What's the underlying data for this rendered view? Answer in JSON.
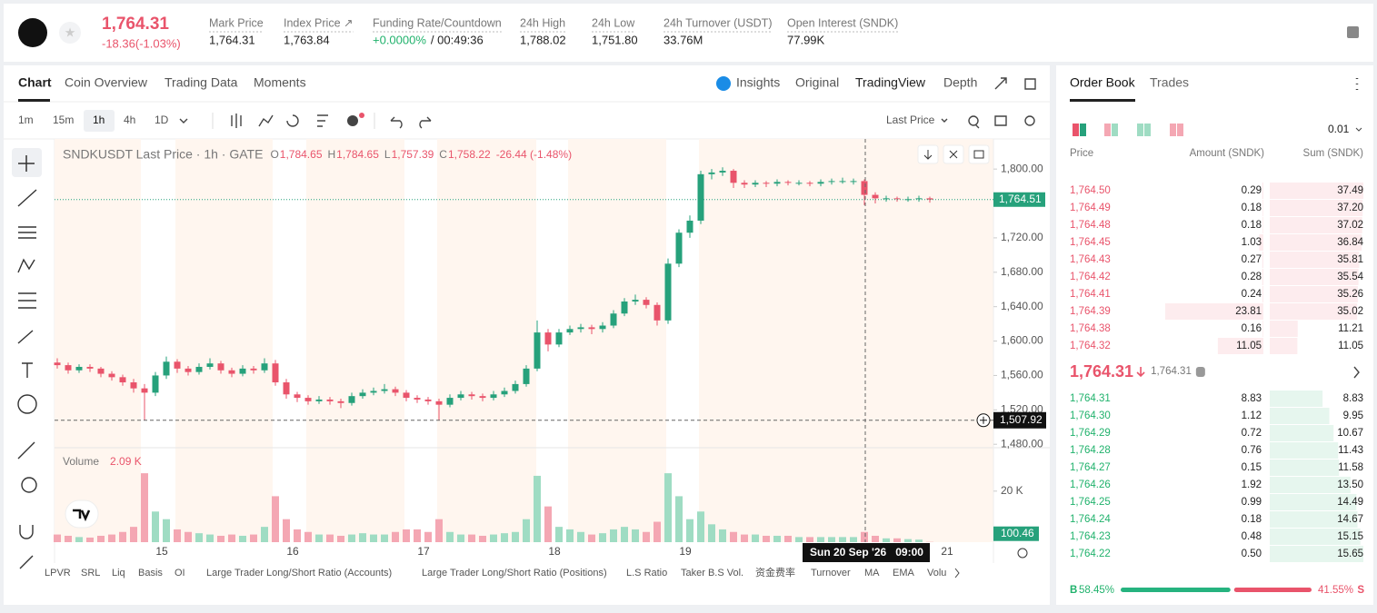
{
  "header": {
    "price": "1,764.31",
    "change": "-18.36(-1.03%)",
    "stats": [
      {
        "label": "Mark Price",
        "value": "1,764.31"
      },
      {
        "label": "Index Price ↗",
        "value": "1,763.84"
      },
      {
        "label": "Funding Rate/Countdown",
        "value": "+0.0000%",
        "countdown": "/ 00:49:36"
      },
      {
        "label": "24h High",
        "value": "1,788.02"
      },
      {
        "label": "24h Low",
        "value": "1,751.80"
      },
      {
        "label": "24h Turnover (USDT)",
        "value": "33.76M"
      },
      {
        "label": "Open Interest (SNDK)",
        "value": "77.99K"
      }
    ]
  },
  "nav": {
    "tabs": [
      "Chart",
      "Coin Overview",
      "Trading Data",
      "Moments"
    ],
    "views": [
      "Insights",
      "Original",
      "TradingView",
      "Depth"
    ]
  },
  "toolbar": {
    "intervals": [
      "1m",
      "15m",
      "1h",
      "4h",
      "1D"
    ],
    "price_type": "Last Price"
  },
  "indicators": [
    "LPVR",
    "SRL",
    "Liq",
    "Basis",
    "OI",
    "Large Trader Long/Short Ratio (Accounts)",
    "Large Trader Long/Short Ratio (Positions)",
    "L.S Ratio",
    "Taker B.S Vol.",
    "资金费率",
    "Turnover",
    "MA",
    "EMA",
    "Volu"
  ],
  "chart_data": {
    "type": "candlestick",
    "legend": {
      "title": "SNDKUSDT Last Price · 1h · GATE",
      "ohlc": [
        {
          "key": "O",
          "value": "1,784.65"
        },
        {
          "key": "H",
          "value": "1,784.65"
        },
        {
          "key": "L",
          "value": "1,757.39"
        },
        {
          "key": "C",
          "value": "1,758.22"
        }
      ],
      "change": "-26.44 (-1.48%)"
    },
    "up_color": "#26a17b",
    "down_color": "#e9546b",
    "candles": [
      [
        1575,
        1580,
        1568,
        1572
      ],
      [
        1572,
        1575,
        1562,
        1566
      ],
      [
        1566,
        1573,
        1563,
        1570
      ],
      [
        1570,
        1573,
        1564,
        1568
      ],
      [
        1568,
        1570,
        1558,
        1562
      ],
      [
        1562,
        1565,
        1554,
        1558
      ],
      [
        1558,
        1561,
        1548,
        1552
      ],
      [
        1552,
        1556,
        1540,
        1545
      ],
      [
        1545,
        1550,
        1508,
        1540
      ],
      [
        1540,
        1564,
        1536,
        1560
      ],
      [
        1560,
        1582,
        1556,
        1576
      ],
      [
        1576,
        1579,
        1563,
        1568
      ],
      [
        1568,
        1571,
        1560,
        1564
      ],
      [
        1564,
        1574,
        1561,
        1570
      ],
      [
        1570,
        1580,
        1567,
        1574
      ],
      [
        1574,
        1577,
        1562,
        1566
      ],
      [
        1566,
        1569,
        1558,
        1562
      ],
      [
        1562,
        1572,
        1559,
        1568
      ],
      [
        1568,
        1571,
        1562,
        1566
      ],
      [
        1566,
        1580,
        1563,
        1574
      ],
      [
        1574,
        1578,
        1548,
        1552
      ],
      [
        1552,
        1556,
        1533,
        1538
      ],
      [
        1538,
        1541,
        1529,
        1534
      ],
      [
        1534,
        1537,
        1526,
        1530
      ],
      [
        1530,
        1536,
        1527,
        1532
      ],
      [
        1532,
        1535,
        1526,
        1530
      ],
      [
        1530,
        1533,
        1522,
        1528
      ],
      [
        1528,
        1540,
        1525,
        1536
      ],
      [
        1536,
        1544,
        1533,
        1540
      ],
      [
        1540,
        1546,
        1537,
        1542
      ],
      [
        1542,
        1550,
        1539,
        1544
      ],
      [
        1544,
        1547,
        1536,
        1540
      ],
      [
        1540,
        1543,
        1530,
        1534
      ],
      [
        1534,
        1537,
        1528,
        1532
      ],
      [
        1532,
        1535,
        1526,
        1530
      ],
      [
        1530,
        1533,
        1508,
        1526
      ],
      [
        1526,
        1538,
        1523,
        1534
      ],
      [
        1534,
        1542,
        1531,
        1538
      ],
      [
        1538,
        1541,
        1532,
        1536
      ],
      [
        1536,
        1539,
        1530,
        1534
      ],
      [
        1534,
        1542,
        1531,
        1538
      ],
      [
        1538,
        1546,
        1535,
        1542
      ],
      [
        1542,
        1554,
        1539,
        1550
      ],
      [
        1550,
        1572,
        1547,
        1568
      ],
      [
        1568,
        1624,
        1565,
        1610
      ],
      [
        1610,
        1614,
        1588,
        1596
      ],
      [
        1596,
        1614,
        1593,
        1610
      ],
      [
        1610,
        1618,
        1607,
        1614
      ],
      [
        1614,
        1620,
        1610,
        1616
      ],
      [
        1616,
        1619,
        1608,
        1614
      ],
      [
        1614,
        1622,
        1610,
        1618
      ],
      [
        1618,
        1636,
        1615,
        1632
      ],
      [
        1632,
        1650,
        1629,
        1646
      ],
      [
        1646,
        1654,
        1642,
        1648
      ],
      [
        1648,
        1651,
        1638,
        1642
      ],
      [
        1642,
        1645,
        1618,
        1624
      ],
      [
        1624,
        1696,
        1620,
        1690
      ],
      [
        1690,
        1730,
        1686,
        1726
      ],
      [
        1726,
        1746,
        1720,
        1740
      ],
      [
        1740,
        1798,
        1736,
        1794
      ],
      [
        1794,
        1800,
        1788,
        1796
      ],
      [
        1796,
        1802,
        1792,
        1798
      ],
      [
        1798,
        1800,
        1778,
        1784
      ],
      [
        1784,
        1787,
        1778,
        1782
      ],
      [
        1782,
        1787,
        1779,
        1784
      ],
      [
        1784,
        1786,
        1779,
        1783
      ],
      [
        1783,
        1788,
        1780,
        1785
      ],
      [
        1785,
        1787,
        1781,
        1784
      ],
      [
        1784,
        1787,
        1781,
        1784
      ],
      [
        1784,
        1786,
        1780,
        1783
      ],
      [
        1783,
        1788,
        1780,
        1785
      ],
      [
        1785,
        1789,
        1782,
        1786
      ],
      [
        1786,
        1790,
        1783,
        1786
      ],
      [
        1786,
        1789,
        1782,
        1786
      ],
      [
        1786,
        1788,
        1758,
        1770
      ],
      [
        1770,
        1773,
        1760,
        1766
      ],
      [
        1766,
        1769,
        1762,
        1766
      ],
      [
        1766,
        1768,
        1762,
        1765
      ],
      [
        1765,
        1768,
        1762,
        1765
      ],
      [
        1765,
        1769,
        1762,
        1766
      ],
      [
        1766,
        1768,
        1761,
        1764.51
      ]
    ],
    "volumes": [
      3000,
      2500,
      2000,
      1800,
      2500,
      3000,
      4000,
      6000,
      27000,
      12000,
      9000,
      5000,
      4000,
      3500,
      3000,
      2500,
      3000,
      2500,
      3000,
      6000,
      18000,
      9000,
      5000,
      4000,
      3000,
      3000,
      2500,
      3000,
      3500,
      3000,
      3000,
      4000,
      5000,
      5000,
      4000,
      9000,
      4000,
      3000,
      3000,
      2500,
      3000,
      3500,
      4000,
      9000,
      26000,
      14000,
      6000,
      5000,
      4000,
      3000,
      3500,
      5000,
      6000,
      5000,
      4000,
      8000,
      27000,
      18000,
      9000,
      12000,
      7000,
      5000,
      4000,
      3000,
      3000,
      2500,
      2500,
      2500,
      2000,
      2000,
      2000,
      2000,
      2000,
      2000,
      4000,
      2500,
      1500,
      1500,
      1200,
      1000,
      100.46
    ],
    "ylim": [
      1476,
      1835
    ],
    "yticks": [
      {
        "value": 1800,
        "label": "1,800.00"
      },
      {
        "value": 1720,
        "label": "1,720.00"
      },
      {
        "value": 1680,
        "label": "1,680.00"
      },
      {
        "value": 1640,
        "label": "1,640.00"
      },
      {
        "value": 1600,
        "label": "1,600.00"
      },
      {
        "value": 1560,
        "label": "1,560.00"
      },
      {
        "value": 1520,
        "label": "1,520.00"
      },
      {
        "value": 1480,
        "label": "1,480.00"
      }
    ],
    "last_price": {
      "value": 1764.51,
      "label": "1,764.51"
    },
    "crosshair": {
      "price": {
        "value": 1507.92,
        "label": "1,507.92"
      },
      "time": "Sun 20 Sep '26   09:00"
    },
    "xticks": [
      15,
      16,
      17,
      18,
      19,
      21
    ],
    "volume_title": "Volume",
    "volume_value": "2.09 K",
    "vlim": [
      0,
      37000
    ],
    "vticks": [
      {
        "value": 20000,
        "label": "20 K"
      }
    ]
  },
  "order_book": {
    "tabs": [
      "Order Book",
      "Trades"
    ],
    "precision": "0.01",
    "headers": [
      "Price",
      "Amount (SNDK)",
      "Sum (SNDK)"
    ],
    "asks": [
      {
        "price": "1,764.50",
        "amount": "0.29",
        "sum": "37.49"
      },
      {
        "price": "1,764.49",
        "amount": "0.18",
        "sum": "37.20"
      },
      {
        "price": "1,764.48",
        "amount": "0.18",
        "sum": "37.02"
      },
      {
        "price": "1,764.45",
        "amount": "1.03",
        "sum": "36.84"
      },
      {
        "price": "1,764.43",
        "amount": "0.27",
        "sum": "35.81"
      },
      {
        "price": "1,764.42",
        "amount": "0.28",
        "sum": "35.54"
      },
      {
        "price": "1,764.41",
        "amount": "0.24",
        "sum": "35.26"
      },
      {
        "price": "1,764.39",
        "amount": "23.81",
        "sum": "35.02"
      },
      {
        "price": "1,764.38",
        "amount": "0.16",
        "sum": "11.21"
      },
      {
        "price": "1,764.32",
        "amount": "11.05",
        "sum": "11.05"
      }
    ],
    "mid": {
      "price": "1,764.31",
      "mark": "1,764.31"
    },
    "bids": [
      {
        "price": "1,764.31",
        "amount": "8.83",
        "sum": "8.83"
      },
      {
        "price": "1,764.30",
        "amount": "1.12",
        "sum": "9.95"
      },
      {
        "price": "1,764.29",
        "amount": "0.72",
        "sum": "10.67"
      },
      {
        "price": "1,764.28",
        "amount": "0.76",
        "sum": "11.43"
      },
      {
        "price": "1,764.27",
        "amount": "0.15",
        "sum": "11.58"
      },
      {
        "price": "1,764.26",
        "amount": "1.92",
        "sum": "13.50"
      },
      {
        "price": "1,764.25",
        "amount": "0.99",
        "sum": "14.49"
      },
      {
        "price": "1,764.24",
        "amount": "0.18",
        "sum": "14.67"
      },
      {
        "price": "1,764.23",
        "amount": "0.48",
        "sum": "15.15"
      },
      {
        "price": "1,764.22",
        "amount": "0.50",
        "sum": "15.65"
      }
    ],
    "ratio": {
      "buy_key": "B",
      "buy": "58.45%",
      "sell": "41.55%",
      "sell_key": "S"
    }
  }
}
